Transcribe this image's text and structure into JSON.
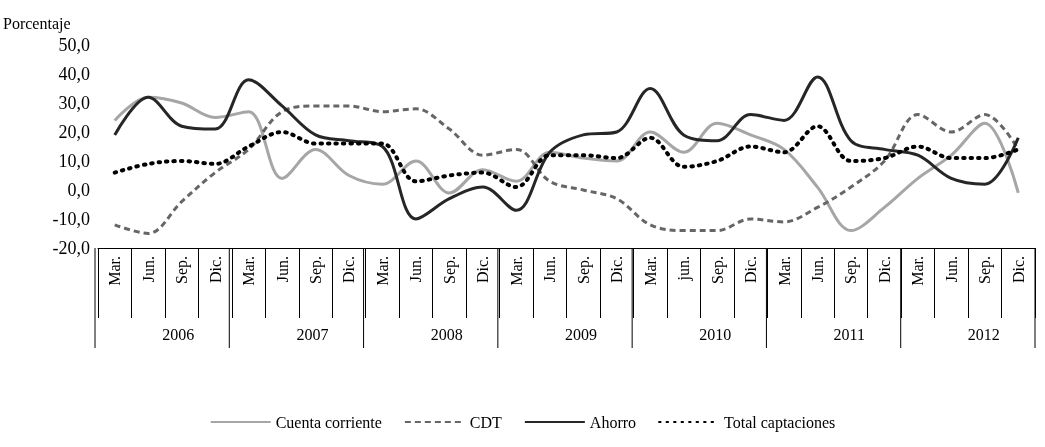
{
  "chart_data": {
    "type": "line",
    "ylabel": "Porcentaje",
    "categories": [
      "Mar.",
      "Jun.",
      "Sep.",
      "Dic.",
      "Mar.",
      "Jun.",
      "Sep.",
      "Dic.",
      "Mar.",
      "Jun.",
      "Sep.",
      "Dic.",
      "Mar.",
      "Jun.",
      "Sep.",
      "Dic.",
      "Mar.",
      "jun.",
      "Sep.",
      "Dic.",
      "Mar.",
      "Jun.",
      "Sep.",
      "Dic.",
      "Mar.",
      "Jun.",
      "Sep.",
      "Dic."
    ],
    "annotations": [
      "2006",
      "2007",
      "2008",
      "2009",
      "2010",
      "2011",
      "2012"
    ],
    "series": [
      {
        "name": "Cuenta corriente",
        "color": "#a6a6a6",
        "line_style": "solid",
        "values": [
          24,
          32,
          30,
          25,
          27,
          4,
          14,
          5,
          2,
          10,
          -1,
          7,
          3,
          13,
          11,
          10,
          20,
          13,
          23,
          19,
          14,
          1,
          -14,
          -6,
          4,
          12,
          23,
          -1
        ]
      },
      {
        "name": "CDT",
        "color": "#666666",
        "line_style": "dashed",
        "values": [
          -12,
          -15,
          -4,
          6,
          14,
          27,
          29,
          29,
          27,
          28,
          21,
          12,
          14,
          3,
          0,
          -3,
          -12,
          -14,
          -14,
          -10,
          -11,
          -6,
          1,
          10,
          26,
          20,
          26,
          14
        ]
      },
      {
        "name": "Ahorro",
        "color": "#262626",
        "line_style": "solid",
        "values": [
          19,
          32,
          22,
          21,
          38,
          29,
          19,
          17,
          15,
          -10,
          -3,
          1,
          -7,
          13,
          19,
          20,
          35,
          19,
          17,
          26,
          24,
          39,
          17,
          14,
          12,
          4,
          2,
          18
        ]
      },
      {
        "name": "Total captaciones",
        "color": "#000000",
        "line_style": "dotted",
        "values": [
          6,
          9,
          10,
          9,
          15,
          20,
          16,
          16,
          16,
          3,
          5,
          6,
          1,
          12,
          12,
          11,
          18,
          8,
          10,
          15,
          13,
          22,
          10,
          11,
          15,
          11,
          11,
          14
        ]
      }
    ],
    "ylim": [
      -20,
      50
    ],
    "yticks": [
      {
        "value": -20,
        "label": "-20,0"
      },
      {
        "value": -10,
        "label": "-10,0"
      },
      {
        "value": 0,
        "label": "0,0"
      },
      {
        "value": 10,
        "label": "10,0"
      },
      {
        "value": 20,
        "label": "20,0"
      },
      {
        "value": 30,
        "label": "30,0"
      },
      {
        "value": 40,
        "label": "40,0"
      },
      {
        "value": 50,
        "label": "50,0"
      }
    ],
    "grid": false,
    "legend": "bottom",
    "marker": "none"
  }
}
